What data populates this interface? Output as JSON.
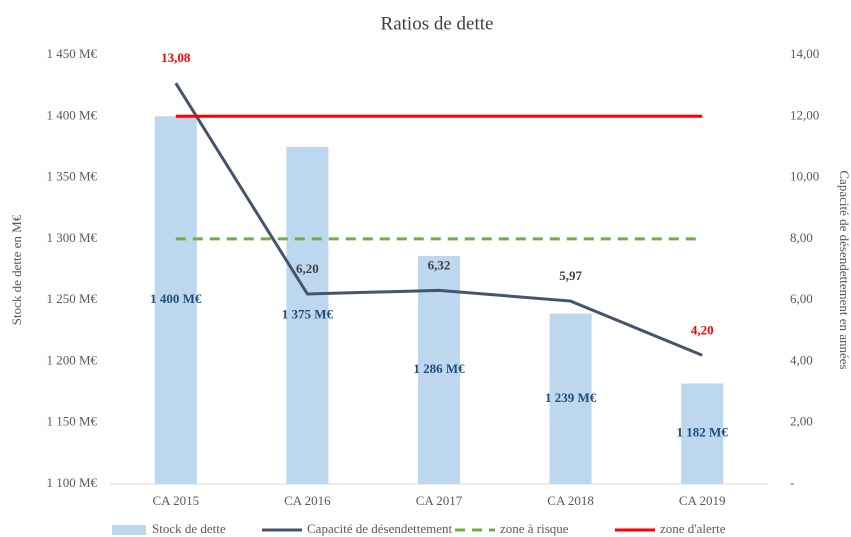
{
  "chart_data": {
    "type": "combo",
    "title": "Ratios de dette",
    "y_label": "Stock de dette en M€",
    "y2_label": "Capacité de désendettement en années",
    "categories": [
      "CA 2015",
      "CA 2016",
      "CA 2017",
      "CA 2018",
      "CA 2019"
    ],
    "ylim": [
      1100,
      1450
    ],
    "yticks": [
      {
        "value": 1100,
        "label": "1 100 M€"
      },
      {
        "value": 1150,
        "label": "1 150 M€"
      },
      {
        "value": 1200,
        "label": "1 200 M€"
      },
      {
        "value": 1250,
        "label": "1 250 M€"
      },
      {
        "value": 1300,
        "label": "1 300 M€"
      },
      {
        "value": 1350,
        "label": "1 350 M€"
      },
      {
        "value": 1400,
        "label": "1 400 M€"
      },
      {
        "value": 1450,
        "label": "1 450 M€"
      }
    ],
    "y2lim": [
      0,
      14
    ],
    "y2ticks": [
      {
        "value": 0,
        "label": "-"
      },
      {
        "value": 2,
        "label": "2,00"
      },
      {
        "value": 4,
        "label": "4,00"
      },
      {
        "value": 6,
        "label": "6,00"
      },
      {
        "value": 8,
        "label": "8,00"
      },
      {
        "value": 10,
        "label": "10,00"
      },
      {
        "value": 12,
        "label": "12,00"
      },
      {
        "value": 14,
        "label": "14,00"
      }
    ],
    "series": [
      {
        "name": "Stock de dette",
        "type": "bar",
        "color": "#bdd7ee",
        "label_color": "#1f4e79",
        "values": [
          1400,
          1375,
          1286,
          1239,
          1182
        ],
        "value_labels": [
          "1 400 M€",
          "1 375 M€",
          "1 286 M€",
          "1 239 M€",
          "1 182 M€"
        ]
      },
      {
        "name": "Capacité de désendettement",
        "type": "line",
        "axis": "y2",
        "color": "#44546a",
        "values": [
          13.08,
          6.2,
          6.32,
          5.97,
          4.2
        ],
        "value_labels": [
          "13,08",
          "6,20",
          "6,32",
          "5,97",
          "4,20"
        ],
        "value_label_colors": [
          "#ff0000",
          "#404040",
          "#404040",
          "#404040",
          "#ff0000"
        ]
      },
      {
        "name": "zone à risque",
        "type": "dashed",
        "axis": "y2",
        "color": "#70ad47",
        "values": [
          8,
          8,
          8,
          8,
          8
        ]
      },
      {
        "name": "zone d'alerte",
        "type": "line",
        "axis": "y2",
        "color": "#ff0000",
        "values": [
          12,
          12,
          12,
          12,
          12
        ]
      }
    ],
    "legend": "bottom"
  }
}
